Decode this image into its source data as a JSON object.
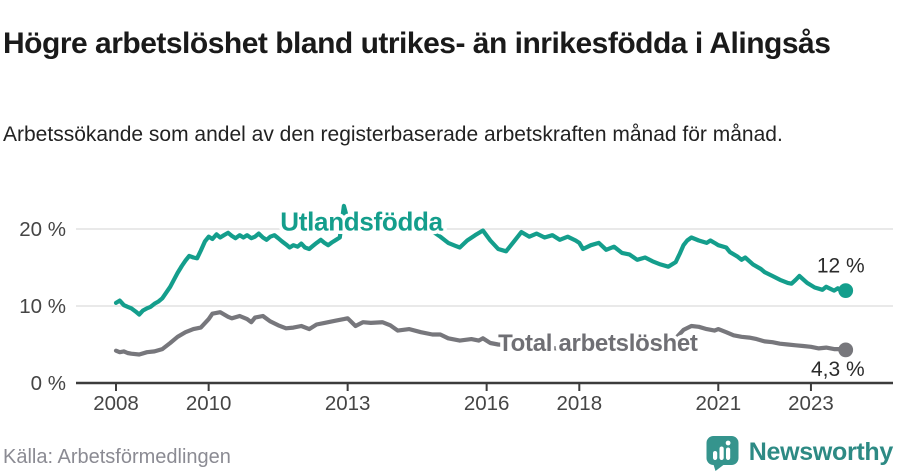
{
  "header": {
    "title": "Högre arbetslöshet bland utrikes- än inrikesfödda i Alingsås",
    "subtitle": "Arbetssökande som andel av den registerbaserade arbetskraften månad för månad."
  },
  "source": "Källa: Arbetsförmedlingen",
  "branding": {
    "name": "Newsworthy",
    "icon": "newsworthy-pin-barchart-icon"
  },
  "colors": {
    "accent_teal": "#149e8c",
    "series_gray": "#77777c",
    "gray_label": "#6f6f74",
    "gridline": "#dcdcdc",
    "axis": "#3c3c3c",
    "axis_text": "#454545",
    "annotation_text": "#2b2b2b",
    "title_text": "#1a1a1a",
    "source_text": "#8b8b93",
    "logo_teal": "#35948d",
    "logo_text_teal": "#2d8a84"
  },
  "chart_data": {
    "type": "line",
    "title": "Högre arbetslöshet bland utrikes- än inrikesfödda i Alingsås",
    "subtitle": "Arbetssökande som andel av den registerbaserade arbetskraften månad för månad.",
    "grid": "horizontal-only",
    "legend_position": "inline-labels",
    "x_axis": {
      "ticks": [
        2008,
        2010,
        2013,
        2016,
        2018,
        2021,
        2023
      ],
      "labels": [
        "2008",
        "2010",
        "2013",
        "2016",
        "2018",
        "2021",
        "2023"
      ],
      "range": [
        2007.1,
        2024.8
      ]
    },
    "y_axis": {
      "ticks": [
        0,
        10,
        20
      ],
      "labels": [
        "0 %",
        "10 %",
        "20 %"
      ],
      "range": [
        0,
        24
      ],
      "unit": "%"
    },
    "series": [
      {
        "name": "Utlandsfödda",
        "color": "#149e8c",
        "label_x": 2013.3,
        "label_y": 19.8,
        "label_font_size": 26,
        "end_label": "12 %",
        "end_label_position": "above",
        "points": [
          [
            2008.0,
            10.4
          ],
          [
            2008.08,
            10.7
          ],
          [
            2008.17,
            10.1
          ],
          [
            2008.25,
            9.9
          ],
          [
            2008.33,
            9.7
          ],
          [
            2008.42,
            9.3
          ],
          [
            2008.5,
            8.9
          ],
          [
            2008.58,
            9.4
          ],
          [
            2008.67,
            9.7
          ],
          [
            2008.75,
            9.9
          ],
          [
            2008.83,
            10.3
          ],
          [
            2008.92,
            10.6
          ],
          [
            2009.0,
            11.0
          ],
          [
            2009.08,
            11.7
          ],
          [
            2009.17,
            12.5
          ],
          [
            2009.25,
            13.4
          ],
          [
            2009.33,
            14.3
          ],
          [
            2009.42,
            15.2
          ],
          [
            2009.5,
            15.9
          ],
          [
            2009.58,
            16.5
          ],
          [
            2009.67,
            16.3
          ],
          [
            2009.75,
            16.2
          ],
          [
            2009.83,
            17.2
          ],
          [
            2009.92,
            18.4
          ],
          [
            2010.0,
            19.0
          ],
          [
            2010.08,
            18.7
          ],
          [
            2010.17,
            19.3
          ],
          [
            2010.25,
            18.9
          ],
          [
            2010.33,
            19.2
          ],
          [
            2010.42,
            19.5
          ],
          [
            2010.5,
            19.1
          ],
          [
            2010.58,
            18.8
          ],
          [
            2010.67,
            19.2
          ],
          [
            2010.75,
            18.9
          ],
          [
            2010.83,
            19.2
          ],
          [
            2010.92,
            18.8
          ],
          [
            2011.0,
            19.0
          ],
          [
            2011.08,
            19.4
          ],
          [
            2011.17,
            18.9
          ],
          [
            2011.25,
            18.6
          ],
          [
            2011.33,
            19.0
          ],
          [
            2011.42,
            19.2
          ],
          [
            2011.5,
            18.8
          ],
          [
            2011.58,
            18.4
          ],
          [
            2011.67,
            18.0
          ],
          [
            2011.75,
            17.6
          ],
          [
            2011.83,
            17.9
          ],
          [
            2011.92,
            17.7
          ],
          [
            2012.0,
            18.1
          ],
          [
            2012.08,
            17.6
          ],
          [
            2012.17,
            17.4
          ],
          [
            2012.25,
            17.8
          ],
          [
            2012.33,
            18.2
          ],
          [
            2012.42,
            18.6
          ],
          [
            2012.5,
            18.2
          ],
          [
            2012.58,
            17.9
          ],
          [
            2012.67,
            18.3
          ],
          [
            2012.75,
            18.6
          ],
          [
            2012.83,
            18.9
          ],
          [
            2012.92,
            23.0
          ],
          [
            2013.0,
            21.2
          ],
          [
            2013.17,
            20.7
          ],
          [
            2013.33,
            20.9
          ],
          [
            2013.5,
            20.4
          ],
          [
            2013.67,
            20.7
          ],
          [
            2013.83,
            20.3
          ],
          [
            2014.0,
            20.6
          ],
          [
            2014.17,
            20.2
          ],
          [
            2014.33,
            20.4
          ],
          [
            2014.5,
            20.1
          ],
          [
            2014.67,
            20.3
          ],
          [
            2014.83,
            19.7
          ],
          [
            2015.0,
            19.0
          ],
          [
            2015.17,
            18.2
          ],
          [
            2015.33,
            17.8
          ],
          [
            2015.42,
            17.6
          ],
          [
            2015.58,
            18.5
          ],
          [
            2015.75,
            19.2
          ],
          [
            2015.92,
            19.8
          ],
          [
            2016.08,
            18.5
          ],
          [
            2016.25,
            17.4
          ],
          [
            2016.42,
            17.1
          ],
          [
            2016.58,
            18.3
          ],
          [
            2016.75,
            19.6
          ],
          [
            2016.92,
            19.0
          ],
          [
            2017.08,
            19.4
          ],
          [
            2017.25,
            18.9
          ],
          [
            2017.42,
            19.2
          ],
          [
            2017.58,
            18.6
          ],
          [
            2017.75,
            19.0
          ],
          [
            2017.92,
            18.5
          ],
          [
            2018.0,
            18.2
          ],
          [
            2018.08,
            17.4
          ],
          [
            2018.25,
            17.9
          ],
          [
            2018.42,
            18.2
          ],
          [
            2018.58,
            17.3
          ],
          [
            2018.75,
            17.7
          ],
          [
            2018.92,
            16.9
          ],
          [
            2019.08,
            16.7
          ],
          [
            2019.25,
            16.0
          ],
          [
            2019.42,
            16.3
          ],
          [
            2019.58,
            15.8
          ],
          [
            2019.75,
            15.4
          ],
          [
            2019.92,
            15.1
          ],
          [
            2020.08,
            15.7
          ],
          [
            2020.17,
            16.8
          ],
          [
            2020.25,
            17.9
          ],
          [
            2020.33,
            18.5
          ],
          [
            2020.42,
            18.9
          ],
          [
            2020.58,
            18.5
          ],
          [
            2020.75,
            18.2
          ],
          [
            2020.83,
            18.5
          ],
          [
            2020.92,
            18.2
          ],
          [
            2021.0,
            17.9
          ],
          [
            2021.17,
            17.6
          ],
          [
            2021.25,
            17.0
          ],
          [
            2021.42,
            16.4
          ],
          [
            2021.5,
            16.0
          ],
          [
            2021.58,
            16.3
          ],
          [
            2021.75,
            15.4
          ],
          [
            2021.92,
            14.8
          ],
          [
            2022.0,
            14.4
          ],
          [
            2022.17,
            13.9
          ],
          [
            2022.33,
            13.4
          ],
          [
            2022.5,
            13.0
          ],
          [
            2022.58,
            12.9
          ],
          [
            2022.67,
            13.4
          ],
          [
            2022.75,
            13.9
          ],
          [
            2022.92,
            13.0
          ],
          [
            2023.08,
            12.4
          ],
          [
            2023.25,
            12.1
          ],
          [
            2023.33,
            12.5
          ],
          [
            2023.5,
            12.0
          ],
          [
            2023.58,
            12.3
          ],
          [
            2023.67,
            11.9
          ],
          [
            2023.75,
            12.0
          ]
        ]
      },
      {
        "name": "Total arbetslöshet",
        "color": "#77777c",
        "label_color": "#6f6f74",
        "label_x": 2018.4,
        "label_y": 4.16,
        "label_font_size": 24,
        "end_label": "4,3 %",
        "end_label_position": "below",
        "points": [
          [
            2008.0,
            4.2
          ],
          [
            2008.08,
            4.0
          ],
          [
            2008.17,
            4.1
          ],
          [
            2008.25,
            3.9
          ],
          [
            2008.33,
            3.8
          ],
          [
            2008.5,
            3.7
          ],
          [
            2008.67,
            4.0
          ],
          [
            2008.83,
            4.1
          ],
          [
            2009.0,
            4.4
          ],
          [
            2009.17,
            5.2
          ],
          [
            2009.33,
            6.0
          ],
          [
            2009.5,
            6.6
          ],
          [
            2009.67,
            7.0
          ],
          [
            2009.83,
            7.2
          ],
          [
            2010.0,
            8.3
          ],
          [
            2010.08,
            9.0
          ],
          [
            2010.25,
            9.2
          ],
          [
            2010.42,
            8.6
          ],
          [
            2010.5,
            8.4
          ],
          [
            2010.67,
            8.7
          ],
          [
            2010.83,
            8.3
          ],
          [
            2010.92,
            7.9
          ],
          [
            2011.0,
            8.5
          ],
          [
            2011.17,
            8.7
          ],
          [
            2011.33,
            8.0
          ],
          [
            2011.5,
            7.5
          ],
          [
            2011.67,
            7.1
          ],
          [
            2011.83,
            7.2
          ],
          [
            2012.0,
            7.4
          ],
          [
            2012.17,
            7.0
          ],
          [
            2012.33,
            7.6
          ],
          [
            2012.5,
            7.8
          ],
          [
            2012.75,
            8.1
          ],
          [
            2012.92,
            8.3
          ],
          [
            2013.0,
            8.4
          ],
          [
            2013.17,
            7.4
          ],
          [
            2013.33,
            7.9
          ],
          [
            2013.5,
            7.8
          ],
          [
            2013.75,
            7.9
          ],
          [
            2013.92,
            7.5
          ],
          [
            2014.08,
            6.8
          ],
          [
            2014.33,
            7.0
          ],
          [
            2014.58,
            6.6
          ],
          [
            2014.83,
            6.3
          ],
          [
            2015.0,
            6.3
          ],
          [
            2015.17,
            5.8
          ],
          [
            2015.42,
            5.5
          ],
          [
            2015.67,
            5.7
          ],
          [
            2015.83,
            5.5
          ],
          [
            2015.92,
            5.8
          ],
          [
            2016.08,
            5.2
          ],
          [
            2016.25,
            5.0
          ],
          [
            2016.5,
            4.9
          ],
          [
            2016.75,
            4.8
          ],
          [
            2017.0,
            4.7
          ],
          [
            2017.25,
            4.6
          ],
          [
            2017.5,
            4.5
          ],
          [
            2017.75,
            4.6
          ],
          [
            2018.0,
            4.6
          ],
          [
            2018.25,
            4.4
          ],
          [
            2018.5,
            4.5
          ],
          [
            2018.75,
            4.3
          ],
          [
            2019.0,
            4.3
          ],
          [
            2019.25,
            4.2
          ],
          [
            2019.5,
            4.4
          ],
          [
            2019.75,
            4.6
          ],
          [
            2019.92,
            5.0
          ],
          [
            2020.08,
            5.8
          ],
          [
            2020.25,
            6.9
          ],
          [
            2020.42,
            7.4
          ],
          [
            2020.58,
            7.3
          ],
          [
            2020.75,
            7.0
          ],
          [
            2020.92,
            6.8
          ],
          [
            2021.0,
            7.0
          ],
          [
            2021.17,
            6.6
          ],
          [
            2021.33,
            6.2
          ],
          [
            2021.5,
            6.0
          ],
          [
            2021.67,
            5.9
          ],
          [
            2021.83,
            5.7
          ],
          [
            2022.0,
            5.4
          ],
          [
            2022.17,
            5.3
          ],
          [
            2022.33,
            5.1
          ],
          [
            2022.5,
            5.0
          ],
          [
            2022.67,
            4.9
          ],
          [
            2022.83,
            4.8
          ],
          [
            2023.0,
            4.7
          ],
          [
            2023.17,
            4.5
          ],
          [
            2023.33,
            4.6
          ],
          [
            2023.5,
            4.4
          ],
          [
            2023.67,
            4.4
          ],
          [
            2023.75,
            4.3
          ]
        ]
      }
    ]
  }
}
